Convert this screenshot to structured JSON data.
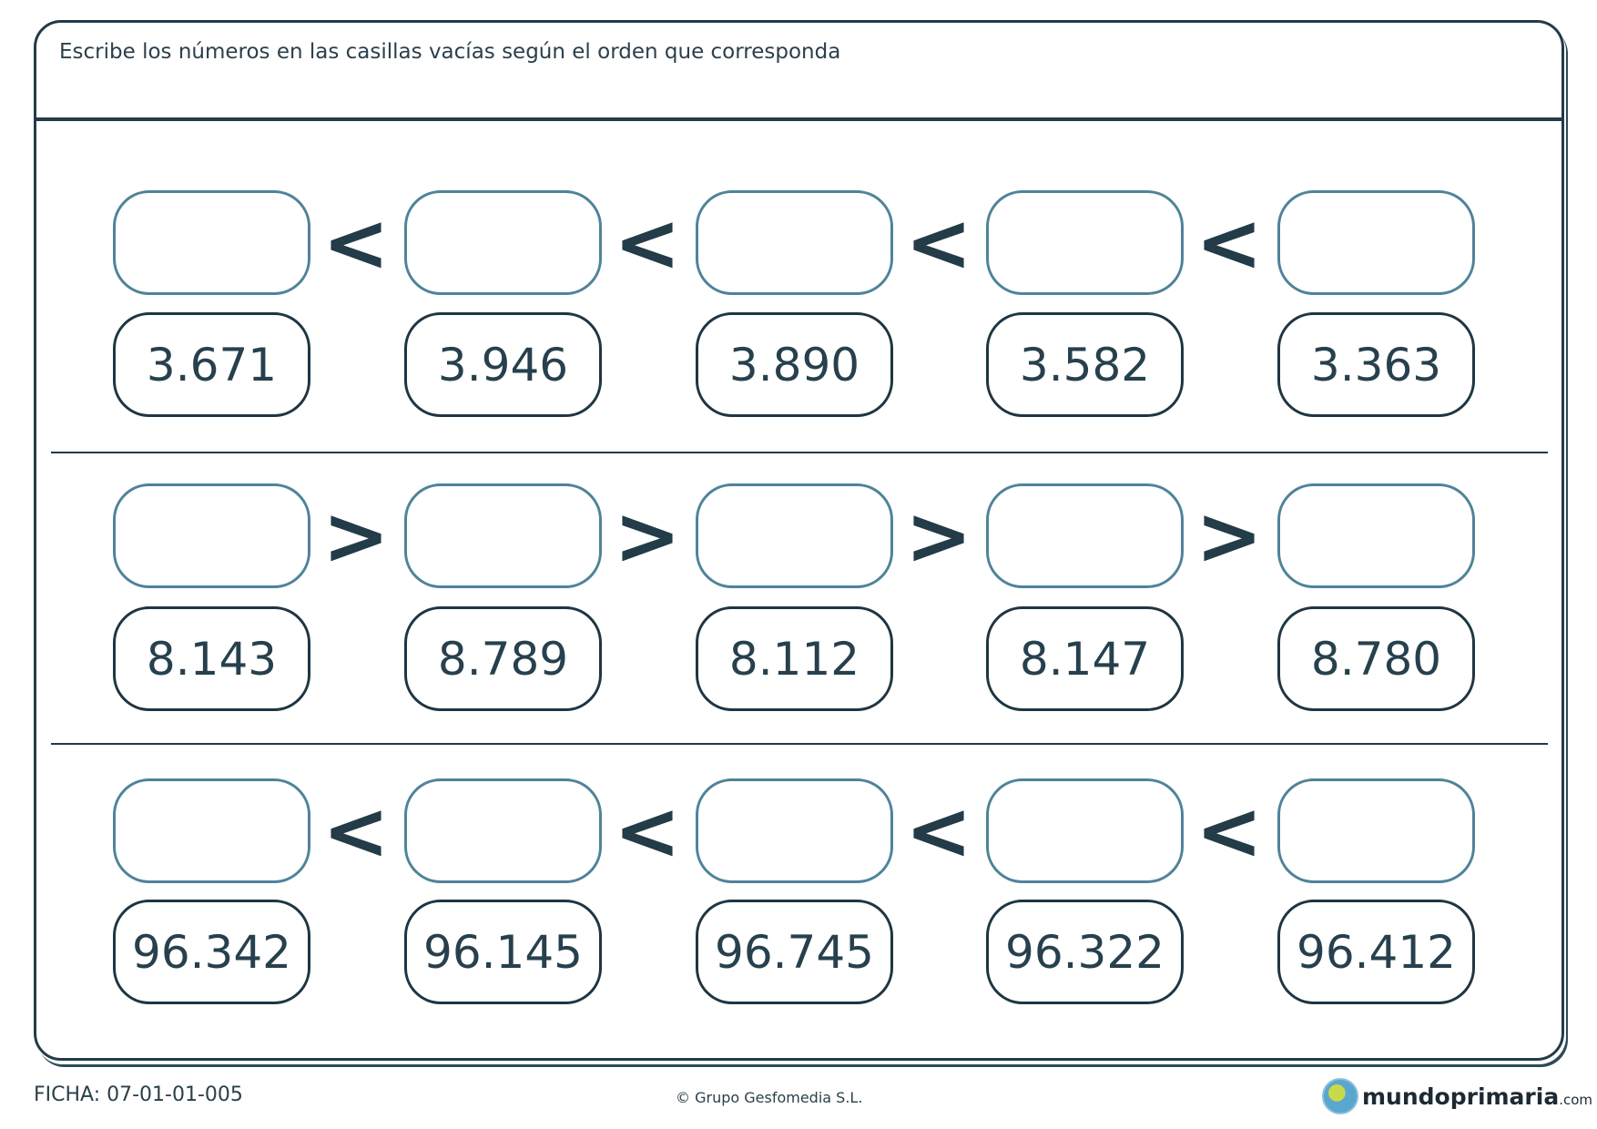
{
  "instructions": "Escribe los números en las casillas vacías según el orden que corresponda",
  "rows": [
    {
      "symbol": "<",
      "numbers": [
        "3.671",
        "3.946",
        "3.890",
        "3.582",
        "3.363"
      ]
    },
    {
      "symbol": ">",
      "numbers": [
        "8.143",
        "8.789",
        "8.112",
        "8.147",
        "8.780"
      ]
    },
    {
      "symbol": "<",
      "numbers": [
        "96.342",
        "96.145",
        "96.745",
        "96.322",
        "96.412"
      ]
    }
  ],
  "footer": {
    "ficha": "FICHA: 07-01-01-005",
    "copyright": "© Grupo Gesfomedia S.L.",
    "logo_main": "mundoprimaria",
    "logo_suffix": ".com"
  },
  "colors": {
    "dark": "#243b48",
    "answer_box_border": "#4f8399"
  }
}
